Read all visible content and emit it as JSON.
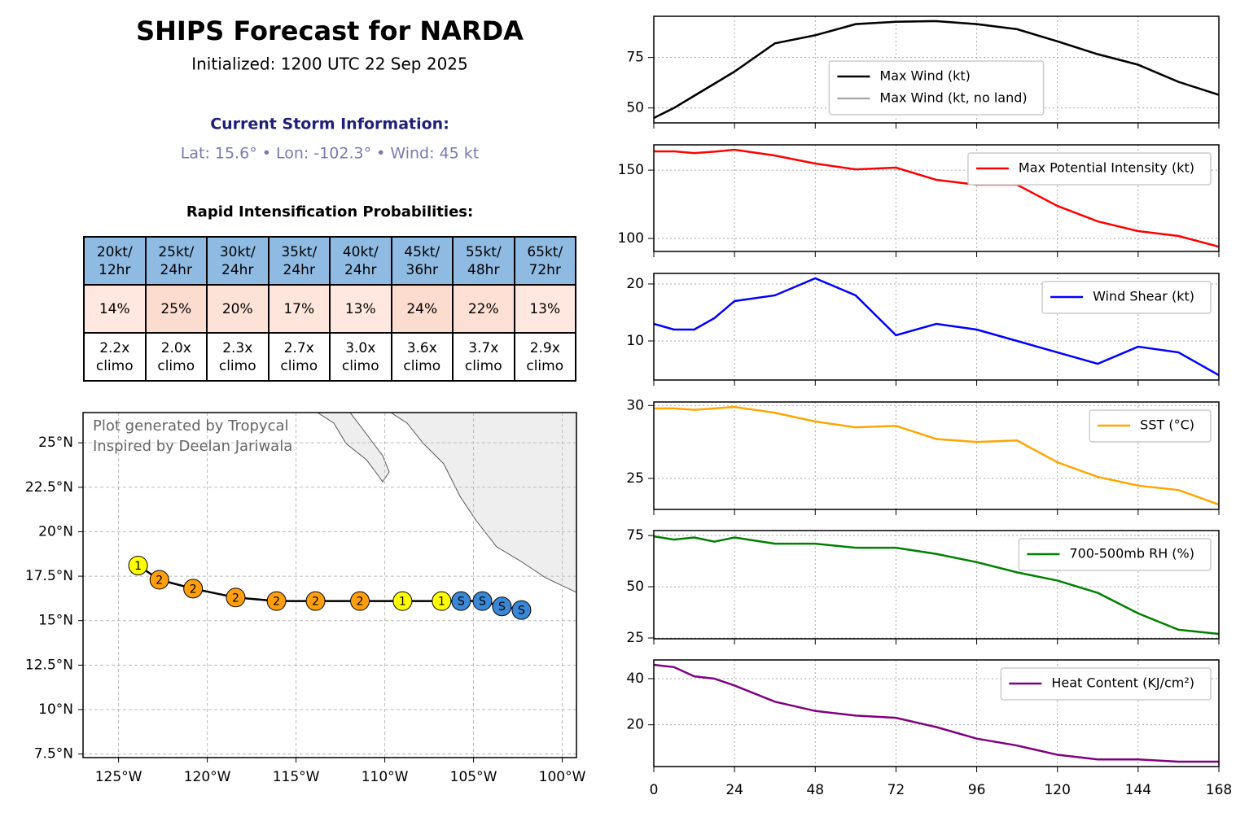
{
  "header": {
    "title": "SHIPS Forecast for NARDA",
    "subtitle": "Initialized: 1200 UTC 22 Sep 2025",
    "storm_heading": "Current Storm Information:",
    "storm_info": "Lat: 15.6° • Lon: -102.3° • Wind: 45 kt"
  },
  "ri_table": {
    "title": "Rapid Intensification Probabilities:",
    "headers": [
      "20kt/\n12hr",
      "25kt/\n24hr",
      "30kt/\n24hr",
      "35kt/\n24hr",
      "40kt/\n24hr",
      "45kt/\n36hr",
      "55kt/\n48hr",
      "65kt/\n72hr"
    ],
    "probabilities": [
      "14%",
      "25%",
      "20%",
      "17%",
      "13%",
      "24%",
      "22%",
      "13%"
    ],
    "probability_colors": [
      "#fee8df",
      "#fddcd0",
      "#fde2d7",
      "#fee6dc",
      "#fee8df",
      "#fddcd0",
      "#fddfd3",
      "#fee8df"
    ],
    "climo": [
      "2.2x\nclimo",
      "2.0x\nclimo",
      "2.3x\nclimo",
      "2.7x\nclimo",
      "3.0x\nclimo",
      "3.6x\nclimo",
      "3.7x\nclimo",
      "2.9x\nclimo"
    ],
    "header_color": "#8fbbe3"
  },
  "chart_data": [
    {
      "type": "line",
      "x": [
        0,
        6,
        12,
        18,
        24,
        36,
        48,
        60,
        72,
        84,
        96,
        108,
        120,
        132,
        144,
        156,
        168
      ],
      "xlim": [
        0,
        168
      ],
      "xticks": [
        0,
        24,
        48,
        72,
        96,
        120,
        144,
        168
      ],
      "ylim": [
        42.6,
        95.4
      ],
      "yticks": [
        50,
        75
      ],
      "grid": true,
      "legend": "lower center",
      "series": [
        {
          "name": "Max Wind (kt)",
          "color": "#000000",
          "values": [
            45,
            50,
            56,
            62,
            68,
            82,
            86,
            91.5,
            92.7,
            93,
            91.5,
            89,
            83,
            76.6,
            71.4,
            62.9,
            56.5
          ]
        },
        {
          "name": "Max Wind (kt, no land)",
          "color": "#aaaaaa",
          "values": [
            45,
            50,
            56,
            62,
            68,
            82,
            86,
            91.5,
            92.7,
            93,
            91.5,
            89,
            83,
            76.6,
            71.4,
            62.9,
            56.5
          ]
        }
      ]
    },
    {
      "type": "line",
      "x": [
        0,
        6,
        12,
        18,
        24,
        36,
        48,
        60,
        72,
        84,
        96,
        108,
        120,
        132,
        144,
        156,
        168
      ],
      "xlim": [
        0,
        168
      ],
      "xticks": [
        0,
        24,
        48,
        72,
        96,
        120,
        144,
        168
      ],
      "ylim": [
        90.5,
        168.5
      ],
      "yticks": [
        100,
        150
      ],
      "grid": true,
      "legend": "upper right",
      "series": [
        {
          "name": "Max Potential Intensity (kt)",
          "color": "#ff0000",
          "values": [
            163.7,
            163.7,
            162.5,
            163.5,
            164.9,
            160.7,
            154.8,
            150.6,
            151.8,
            142.9,
            139.3,
            139.3,
            123.8,
            112.5,
            105.4,
            101.8,
            94
          ]
        }
      ]
    },
    {
      "type": "line",
      "x": [
        0,
        6,
        12,
        18,
        24,
        36,
        48,
        60,
        72,
        84,
        96,
        108,
        120,
        132,
        144,
        156,
        168
      ],
      "xlim": [
        0,
        168
      ],
      "xticks": [
        0,
        24,
        48,
        72,
        96,
        120,
        144,
        168
      ],
      "ylim": [
        3.15,
        21.85
      ],
      "yticks": [
        10,
        20
      ],
      "grid": true,
      "legend": "upper right",
      "series": [
        {
          "name": "Wind Shear (kt)",
          "color": "#0000ff",
          "values": [
            13,
            12,
            12,
            14,
            17,
            18,
            21,
            18,
            11,
            13,
            12,
            10,
            8,
            6,
            9,
            8,
            4
          ]
        }
      ]
    },
    {
      "type": "line",
      "x": [
        0,
        6,
        12,
        18,
        24,
        36,
        48,
        60,
        72,
        84,
        96,
        108,
        120,
        132,
        144,
        156,
        168
      ],
      "xlim": [
        0,
        168
      ],
      "xticks": [
        0,
        24,
        48,
        72,
        96,
        120,
        144,
        168
      ],
      "ylim": [
        22.87,
        30.24
      ],
      "yticks": [
        25,
        30
      ],
      "grid": true,
      "legend": "upper right",
      "series": [
        {
          "name": "SST (°C)",
          "color": "#ffa500",
          "values": [
            29.8,
            29.8,
            29.7,
            29.8,
            29.9,
            29.5,
            28.9,
            28.5,
            28.6,
            27.7,
            27.5,
            27.6,
            26.1,
            25.1,
            24.5,
            24.2,
            23.2
          ]
        }
      ]
    },
    {
      "type": "line",
      "x": [
        0,
        6,
        12,
        18,
        24,
        36,
        48,
        60,
        72,
        84,
        96,
        108,
        120,
        132,
        144,
        156,
        168
      ],
      "xlim": [
        0,
        168
      ],
      "xticks": [
        0,
        24,
        48,
        72,
        96,
        120,
        144,
        168
      ],
      "ylim": [
        24.6,
        77.4
      ],
      "yticks": [
        25,
        50,
        75
      ],
      "grid": true,
      "legend": "upper right",
      "series": [
        {
          "name": "700-500mb RH (%)",
          "color": "#008000",
          "values": [
            74.6,
            73,
            74,
            72,
            74,
            71,
            71,
            69,
            69,
            66,
            62,
            57,
            53,
            47,
            37,
            29,
            27
          ]
        }
      ]
    },
    {
      "type": "line",
      "x": [
        0,
        6,
        12,
        18,
        24,
        36,
        48,
        60,
        72,
        84,
        96,
        108,
        120,
        132,
        144,
        156,
        168
      ],
      "xlim": [
        0,
        168
      ],
      "xticks": [
        0,
        24,
        48,
        72,
        96,
        120,
        144,
        168
      ],
      "ylim": [
        1.9,
        48.1
      ],
      "yticks": [
        20,
        40
      ],
      "grid": true,
      "legend": "upper right",
      "series": [
        {
          "name": "Heat Content (KJ/cm²)",
          "color": "#800080",
          "values": [
            46,
            45,
            41,
            40,
            37,
            30,
            26,
            24,
            23,
            19,
            14,
            11,
            7,
            5,
            5,
            4,
            4
          ]
        }
      ]
    },
    {
      "type": "map",
      "annotations": [
        "Plot generated by Tropycal",
        "Inspired by Deelan Jariwala"
      ],
      "x": [
        -123.9,
        -122.7,
        -120.8,
        -118.4,
        -116.1,
        -113.9,
        -111.4,
        -109,
        -106.8,
        -105.7,
        -104.5,
        -103.4,
        -102.3
      ],
      "y": [
        18.1,
        17.3,
        16.8,
        16.3,
        16.1,
        16.1,
        16.1,
        16.1,
        16.1,
        16.1,
        16.1,
        15.8,
        15.6
      ],
      "point_labels": [
        "1",
        "2",
        "2",
        "2",
        "2",
        "2",
        "2",
        "1",
        "1",
        "S",
        "S",
        "S",
        "S"
      ],
      "point_colors": [
        "#ffff00",
        "#ff9f0e",
        "#ff9f0e",
        "#ff9f0e",
        "#ff9f0e",
        "#ff9f0e",
        "#ff9f0e",
        "#ffff00",
        "#ffff00",
        "#3a87d6",
        "#3a87d6",
        "#3a87d6",
        "#3a87d6"
      ],
      "line_color": "#000000",
      "xlim": [
        -127,
        -99.2
      ],
      "xticks": [
        {
          "value": -125,
          "label": "125°W"
        },
        {
          "value": -120,
          "label": "120°W"
        },
        {
          "value": -115,
          "label": "115°W"
        },
        {
          "value": -110,
          "label": "110°W"
        },
        {
          "value": -105,
          "label": "105°W"
        },
        {
          "value": -100,
          "label": "100°W"
        }
      ],
      "ylim": [
        7.3,
        26.7
      ],
      "yticks": [
        {
          "value": 7.5,
          "label": "7.5°N"
        },
        {
          "value": 10,
          "label": "10°N"
        },
        {
          "value": 12.5,
          "label": "12.5°N"
        },
        {
          "value": 15,
          "label": "15°N"
        },
        {
          "value": 17.5,
          "label": "17.5°N"
        },
        {
          "value": 20,
          "label": "20°N"
        },
        {
          "value": 22.5,
          "label": "22.5°N"
        },
        {
          "value": 25,
          "label": "25°N"
        }
      ],
      "grid": true
    }
  ]
}
